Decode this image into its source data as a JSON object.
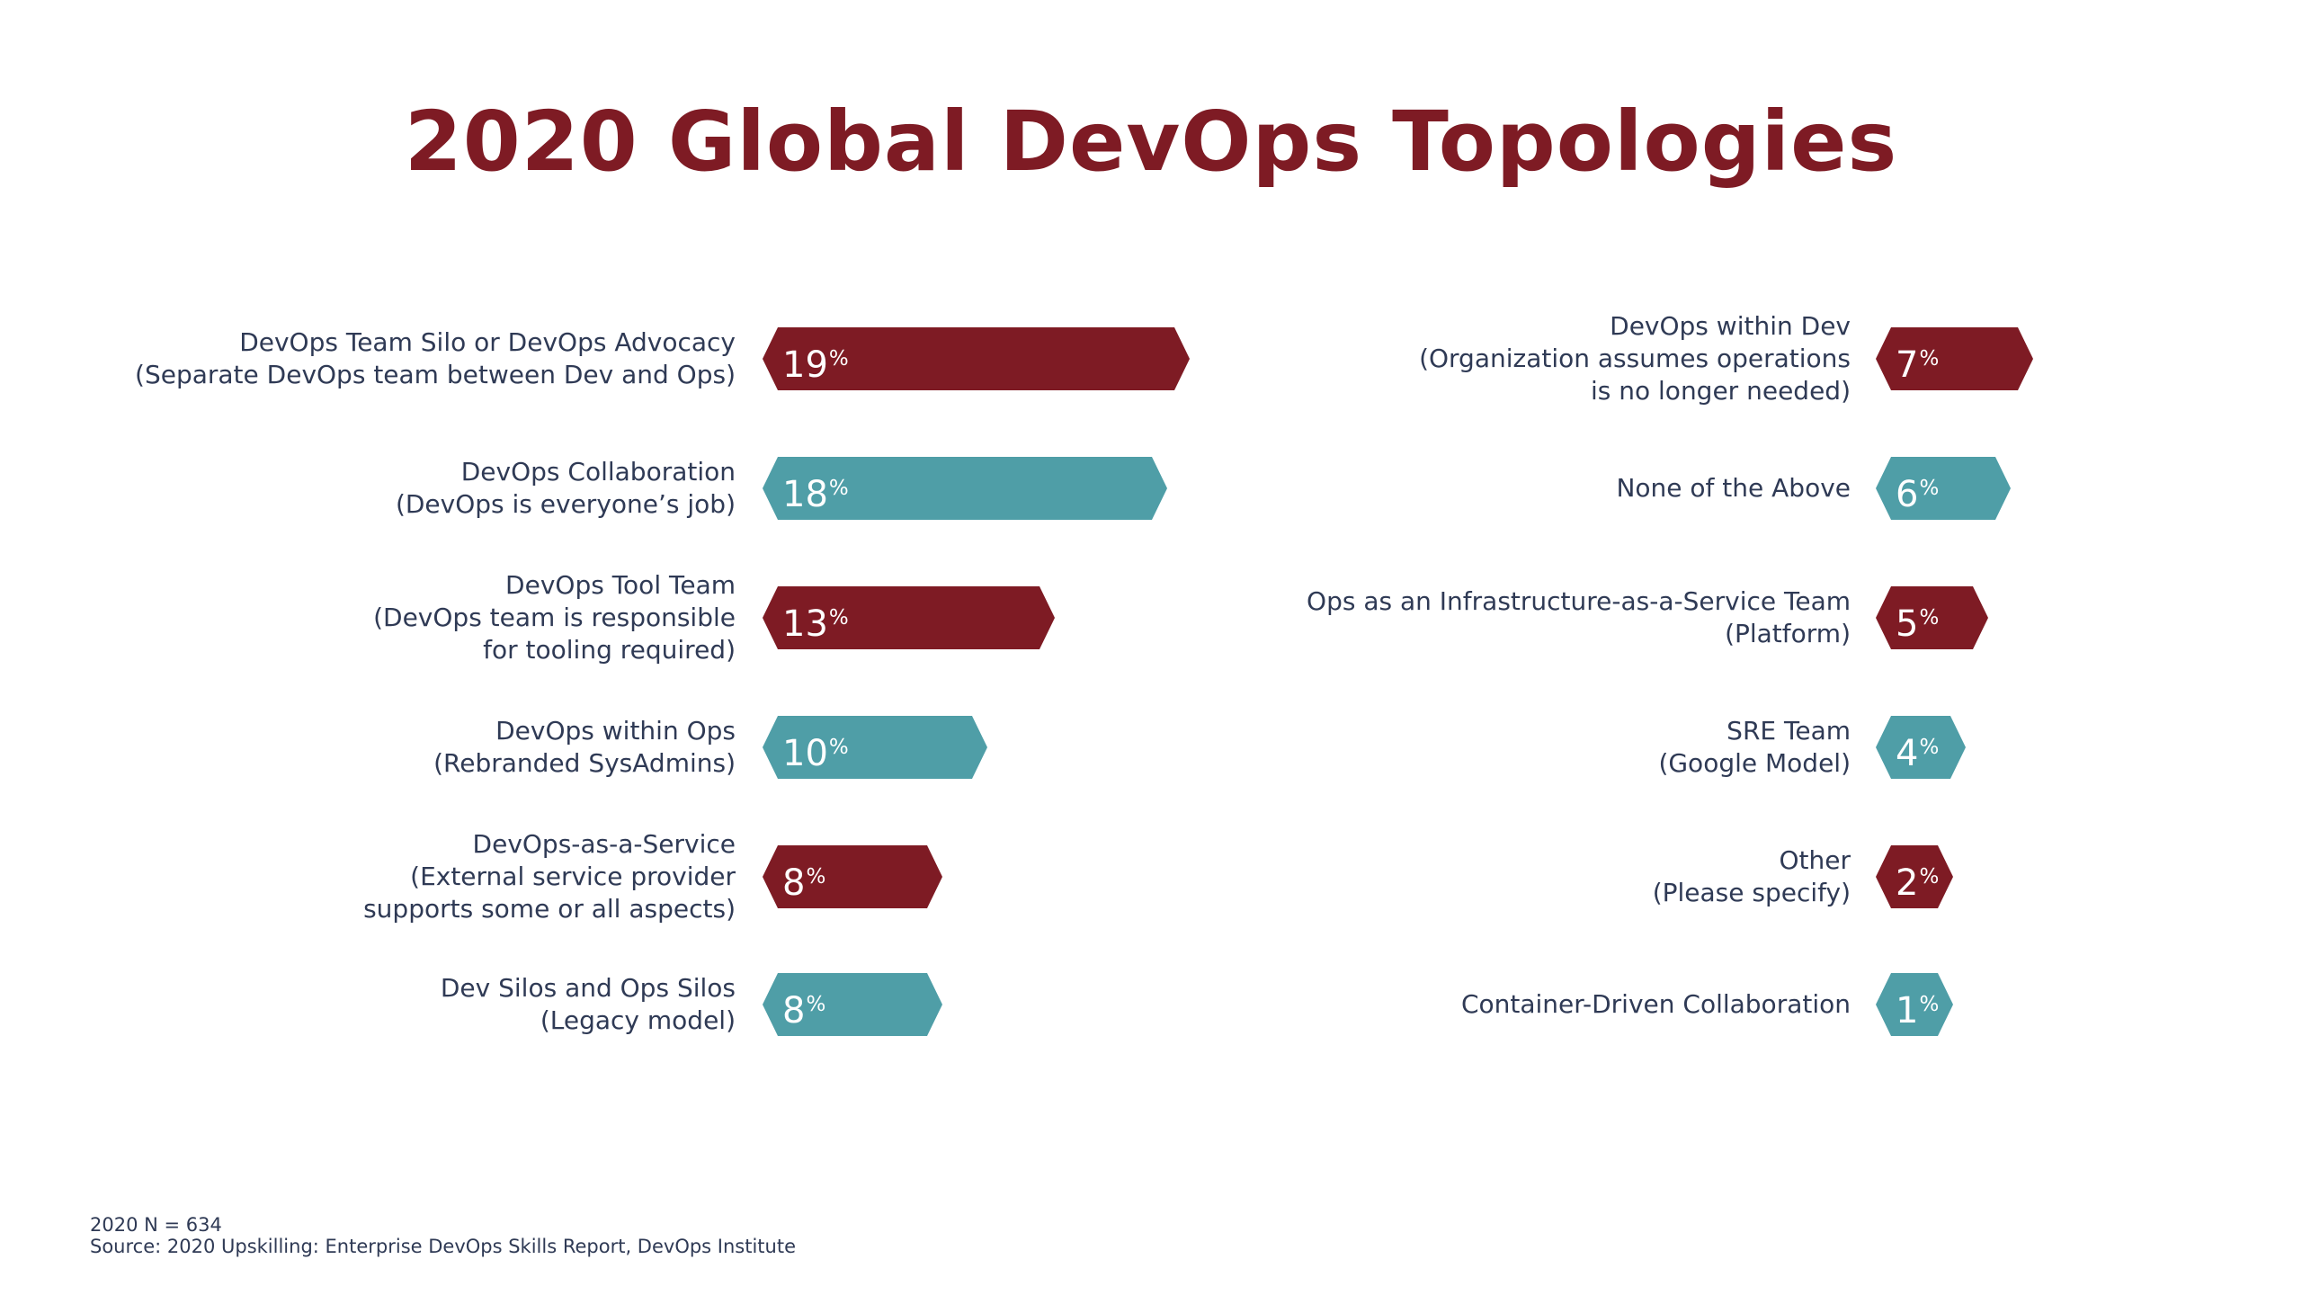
{
  "title": "2020 Global DevOps Topologies",
  "colors": {
    "title": "#7e1b24",
    "red": "#7e1b24",
    "teal": "#4f9ea7",
    "label": "#2f3a55"
  },
  "chart_data": [
    {
      "type": "bar",
      "unit": "%",
      "items": [
        {
          "lines": [
            "DevOps Team Silo or DevOps Advocacy",
            "(Separate DevOps team between Dev and Ops)"
          ],
          "value": 19,
          "color": "red"
        },
        {
          "lines": [
            "DevOps Collaboration",
            "(DevOps is everyone’s job)"
          ],
          "value": 18,
          "color": "teal"
        },
        {
          "lines": [
            "DevOps Tool Team",
            "(DevOps team is responsible",
            "for tooling required)"
          ],
          "value": 13,
          "color": "red"
        },
        {
          "lines": [
            "DevOps within Ops",
            "(Rebranded SysAdmins)"
          ],
          "value": 10,
          "color": "teal"
        },
        {
          "lines": [
            "DevOps-as-a-Service",
            "(External service provider",
            "supports some or all aspects)"
          ],
          "value": 8,
          "color": "red"
        },
        {
          "lines": [
            "Dev Silos and Ops Silos",
            "(Legacy model)"
          ],
          "value": 8,
          "color": "teal"
        }
      ]
    },
    {
      "type": "bar",
      "unit": "%",
      "items": [
        {
          "lines": [
            "DevOps within Dev",
            "(Organization assumes operations",
            "is no longer needed)"
          ],
          "value": 7,
          "color": "red"
        },
        {
          "lines": [
            "None of the Above"
          ],
          "value": 6,
          "color": "teal"
        },
        {
          "lines": [
            "Ops as an Infrastructure-as-a-Service Team",
            "(Platform)"
          ],
          "value": 5,
          "color": "red"
        },
        {
          "lines": [
            "SRE Team",
            "(Google Model)"
          ],
          "value": 4,
          "color": "teal"
        },
        {
          "lines": [
            "Other",
            "(Please specify)"
          ],
          "value": 2,
          "color": "red"
        },
        {
          "lines": [
            "Container-Driven Collaboration"
          ],
          "value": 1,
          "color": "teal"
        }
      ]
    }
  ],
  "footnote": {
    "sample": "2020 N = 634",
    "source": "Source: 2020 Upskilling: Enterprise DevOps Skills Report, DevOps Institute"
  }
}
